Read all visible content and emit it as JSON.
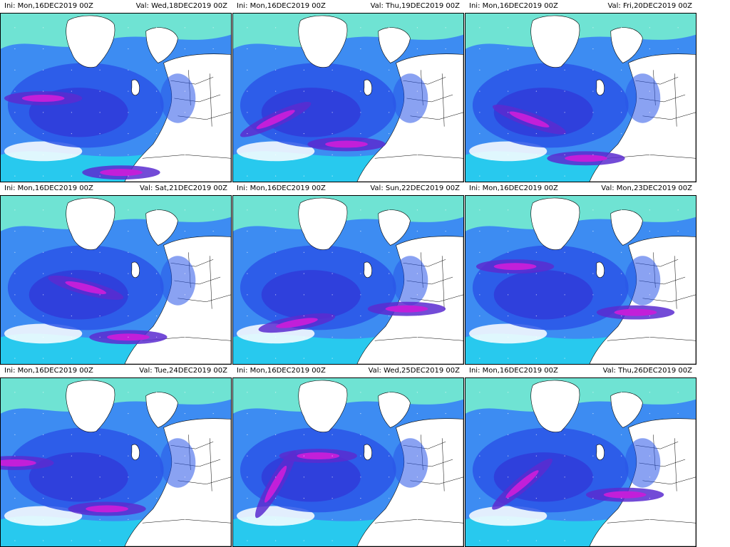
{
  "panels": [
    {
      "ini": "Ini: Mon,16DEC2019 00Z",
      "val": "Val: Wed,18DEC2019 00Z"
    },
    {
      "ini": "Ini: Mon,16DEC2019 00Z",
      "val": "Val: Thu,19DEC2019 00Z"
    },
    {
      "ini": "Ini: Mon,16DEC2019 00Z",
      "val": "Val: Fri,20DEC2019 00Z"
    },
    {
      "ini": "Ini: Mon,16DEC2019 00Z",
      "val": "Val: Sat,21DEC2019 00Z"
    },
    {
      "ini": "Ini: Mon,16DEC2019 00Z",
      "val": "Val: Sun,22DEC2019 00Z"
    },
    {
      "ini": "Ini: Mon,16DEC2019 00Z",
      "val": "Val: Mon,23DEC2019 00Z"
    },
    {
      "ini": "Ini: Mon,16DEC2019 00Z",
      "val": "Val: Tue,24DEC2019 00Z"
    },
    {
      "ini": "Ini: Mon,16DEC2019 00Z",
      "val": "Val: Wed,25DEC2019 00Z"
    },
    {
      "ini": "Ini: Mon,16DEC2019 00Z",
      "val": "Val: Thu,26DEC2019 00Z"
    }
  ],
  "colors": {
    "land_bg": "#ffffff",
    "light_cyan": "#6fe3d3",
    "cyan": "#28c9ee",
    "light_blue": "#3d8cf2",
    "blue": "#2a55e8",
    "mid_blue": "#2f3ad8",
    "purple": "#5a2bd0",
    "magenta": "#c21fd9",
    "border_line": "#000000"
  }
}
